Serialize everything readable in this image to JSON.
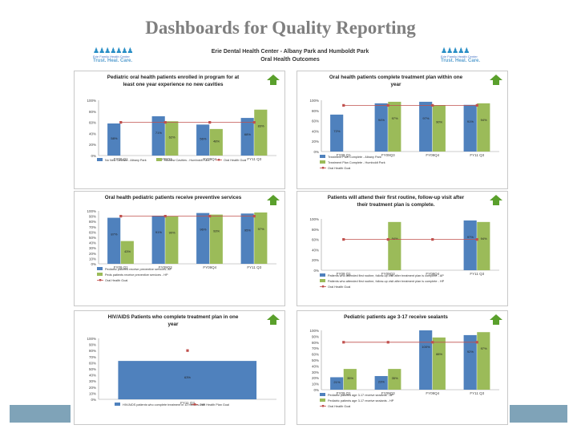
{
  "slide_title": "Dashboards for Quality Reporting",
  "document": {
    "title": "Erie Dental Health Center - Albany Park and Humboldt Park",
    "subtitle": "Oral Health Outcomes",
    "logo_text_small": "Erie Family Health Center",
    "logo_text_tag": "Trust. Heal. Care."
  },
  "colors": {
    "blue": "#4f81bd",
    "green": "#9bbb59",
    "goal": "#c0504d",
    "arrow": "#5aa02c"
  },
  "chart_data": [
    {
      "type": "bar",
      "title": [
        "Pediatric oral health patients enrolled in program for at",
        "least one year experience no new cavities"
      ],
      "categories": [
        "FY09 Q1",
        "FY09Q3",
        "FY09Q4",
        "FY11 Q3"
      ],
      "ylim": [
        0,
        100
      ],
      "yticks": [
        "0%",
        "20%",
        "40%",
        "60%",
        "80%",
        "100%"
      ],
      "series": [
        {
          "name": "No New Cavities - Albany Park",
          "values": [
            58,
            71,
            56,
            68
          ],
          "labels": [
            "58%",
            "71%",
            "56%",
            "68%"
          ]
        },
        {
          "name": "No New Cavities - Humboldt Park",
          "values": [
            null,
            62,
            48,
            83
          ],
          "labels": [
            "",
            "62%",
            "48%",
            "83%"
          ]
        }
      ],
      "goal": {
        "name": "Oral Health Goal",
        "value": 60
      },
      "legend": [
        "No New Cavities - Albany Park",
        "No New Cavities - Humboldt Park",
        "Oral Health Goal"
      ]
    },
    {
      "type": "bar",
      "title": [
        "Oral health patients complete treatment plan within one",
        "year"
      ],
      "categories": [
        "FY09 Q1",
        "FY09Q3",
        "FY09Q4",
        "FY11 Q3"
      ],
      "ylim": [
        0,
        100
      ],
      "yticks": [
        "0%",
        "20%",
        "40%",
        "60%",
        "80%",
        "100%"
      ],
      "series": [
        {
          "name": "Treatment Plan Complete - Albany Park",
          "values": [
            72,
            94,
            97,
            91
          ],
          "labels": [
            "72%",
            "94%",
            "97%",
            "91%"
          ]
        },
        {
          "name": "Treatment Plan Complete - Humboldt Park",
          "values": [
            null,
            97,
            90,
            94
          ],
          "labels": [
            "",
            "97%",
            "90%",
            "94%"
          ]
        }
      ],
      "goal": {
        "name": "Oral Health Goal",
        "value": 90
      },
      "legend": [
        "Treatment Plan Complete - Albany Park",
        "Treatment Plan Complete - Humboldt Park",
        "Oral Health Goal"
      ]
    },
    {
      "type": "bar",
      "title": [
        "Oral health pediatric patients receive preventive services"
      ],
      "categories": [
        "FY09 Q1",
        "FY09Q3",
        "FY09Q4",
        "FY11 Q3"
      ],
      "ylim": [
        0,
        100
      ],
      "yticks": [
        "0%",
        "10%",
        "20%",
        "30%",
        "40%",
        "50%",
        "60%",
        "70%",
        "80%",
        "90%",
        "100%"
      ],
      "series": [
        {
          "name": "Pediatric patients receive preventive services- AP",
          "values": [
            87,
            91,
            96,
            95
          ],
          "labels": [
            "87%",
            "91%",
            "96%",
            "95%"
          ]
        },
        {
          "name": "Peds patients receive preventive services - HP",
          "values": [
            43,
            90,
            93,
            97
          ],
          "labels": [
            "43%",
            "90%",
            "93%",
            "97%"
          ]
        }
      ],
      "goal": {
        "name": "Oral Health Goal",
        "value": 90
      },
      "legend": [
        "Pediatric patients receive preventive services- AP",
        "Peds patients receive preventive services - HP",
        "Oral Health Goal"
      ]
    },
    {
      "type": "bar",
      "title": [
        "Patients will attend their first routine, follow-up visit after",
        "their treatment plan is complete."
      ],
      "categories": [
        "FY09 Q1",
        "FY09Q3",
        "FY09Q4",
        "FY11 Q3"
      ],
      "ylim": [
        0,
        100
      ],
      "yticks": [
        "0%",
        "20%",
        "40%",
        "60%",
        "80%",
        "100%"
      ],
      "series": [
        {
          "name": "Patients who attended first routine, follow-up visit after treatment plan is complete - AP",
          "values": [
            null,
            null,
            null,
            97
          ],
          "labels": [
            "",
            "",
            "",
            "97%"
          ]
        },
        {
          "name": "Patients who attended first routine, follow-up visit after treatment plan is complete - HP",
          "values": [
            null,
            94,
            null,
            94
          ],
          "labels": [
            "",
            "94%",
            "",
            "94%"
          ]
        }
      ],
      "goal": {
        "name": "Oral Health Goal",
        "value": 60
      },
      "legend": [
        "Patients who attended first routine, follow-up visit after treatment plan is complete - AP",
        "Patients who attended first routine, follow-up visit after treatment plan is complete - HP",
        "Oral Health Goal"
      ]
    },
    {
      "type": "bar",
      "title": [
        "HIV/AIDS Patients who complete treatment plan in one",
        "year"
      ],
      "categories": [
        "FY11 Q3"
      ],
      "ylim": [
        0,
        100
      ],
      "yticks": [
        "0%",
        "10%",
        "20%",
        "30%",
        "40%",
        "50%",
        "60%",
        "70%",
        "80%",
        "90%",
        "100%"
      ],
      "series": [
        {
          "name": "HIV/AIDS patients who complete treatment in 12 months- HP",
          "values": [
            63
          ],
          "labels": [
            "63%"
          ]
        }
      ],
      "goal": {
        "name": "Oral Health Plan Goal",
        "value": 80
      },
      "legend": [
        "HIV/AIDS patients who complete treatment in 12 months- HP",
        "Oral Health Plan Goal"
      ]
    },
    {
      "type": "bar",
      "title": [
        "Pediatric patients age 3-17 receive sealants"
      ],
      "categories": [
        "FY09 Q1",
        "FY09Q3",
        "FY09Q4",
        "FY11 Q3"
      ],
      "ylim": [
        0,
        100
      ],
      "yticks": [
        "0%",
        "10%",
        "20%",
        "30%",
        "40%",
        "50%",
        "60%",
        "70%",
        "80%",
        "90%",
        "100%"
      ],
      "series": [
        {
          "name": "Pediatric patients age 3-17 receive sealants - AP",
          "values": [
            21,
            23,
            100,
            92
          ],
          "labels": [
            "21%",
            "23%",
            "100%",
            "92%"
          ]
        },
        {
          "name": "Pediatric patients age 3-17 receive sealants - HP",
          "values": [
            35,
            35,
            88,
            97
          ],
          "labels": [
            "35%",
            "35%",
            "88%",
            "97%"
          ]
        }
      ],
      "goal": {
        "name": "Oral Health Goal",
        "value": 80
      },
      "legend": [
        "Pediatric patients age 3-17 receive sealants - AP",
        "Pediatric patients age 3-17 receive sealants - HP",
        "Oral Health Goal"
      ]
    }
  ]
}
